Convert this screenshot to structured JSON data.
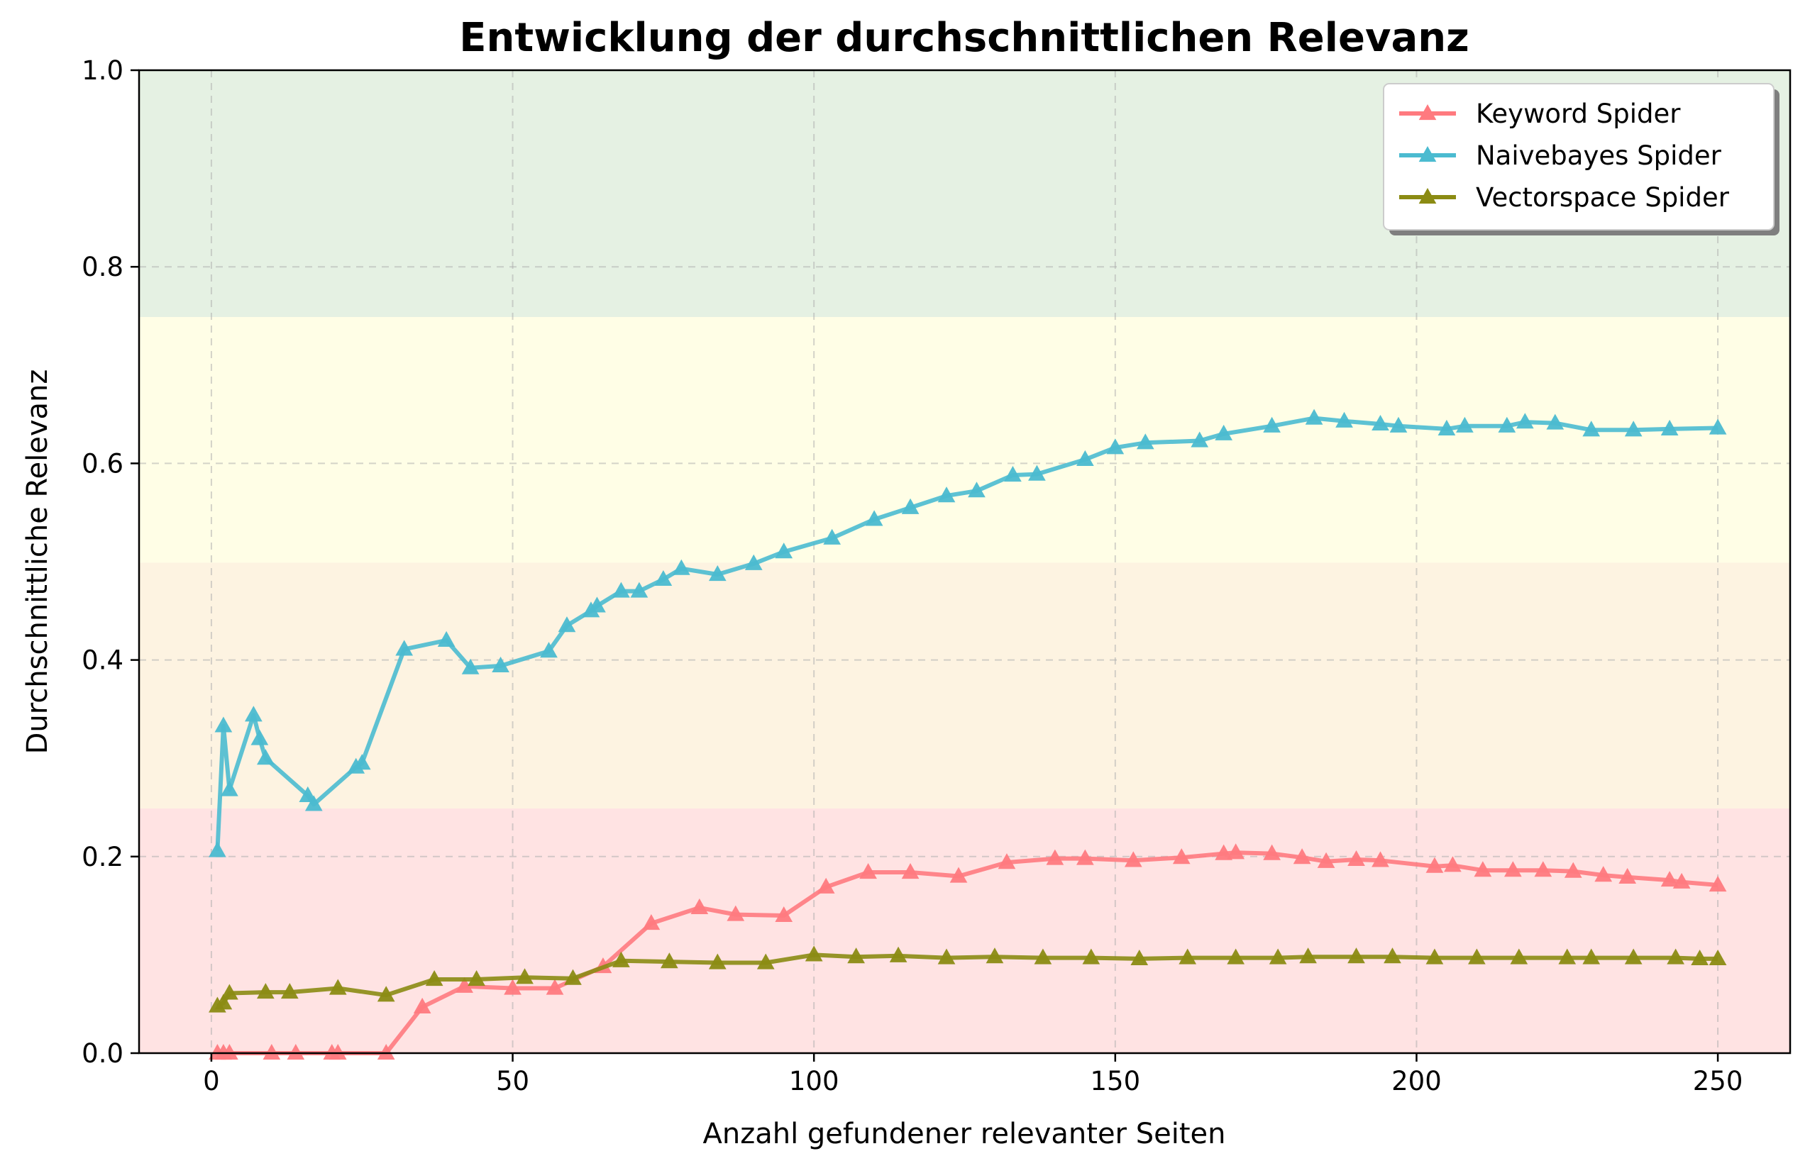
{
  "chart_data": {
    "type": "line",
    "title": "Entwicklung der durchschnittlichen Relevanz",
    "xlabel": "Anzahl gefundener relevanter Seiten",
    "ylabel": "Durchschnittliche Relevanz",
    "xlim": [
      -12,
      262
    ],
    "ylim": [
      0.0,
      1.0
    ],
    "xticks": [
      0,
      50,
      100,
      150,
      200,
      250
    ],
    "xtick_labels": [
      "0",
      "50",
      "100",
      "150",
      "200",
      "250"
    ],
    "yticks": [
      0.0,
      0.2,
      0.4,
      0.6,
      0.8,
      1.0
    ],
    "ytick_labels": [
      "0.0",
      "0.2",
      "0.4",
      "0.6",
      "0.8",
      "1.0"
    ],
    "grid": true,
    "legend_position": "top-right",
    "background_bands": [
      {
        "from": 0.0,
        "to": 0.25,
        "color": "#ffe3e3"
      },
      {
        "from": 0.25,
        "to": 0.5,
        "color": "#fdf3e1"
      },
      {
        "from": 0.5,
        "to": 0.75,
        "color": "#fffee6"
      },
      {
        "from": 0.75,
        "to": 1.0,
        "color": "#e5f1e3"
      }
    ],
    "series": [
      {
        "name": "Keyword Spider",
        "color": "#ff7a7f",
        "marker": "triangle",
        "x": [
          1,
          2,
          3,
          10,
          14,
          20,
          21,
          29,
          35,
          42,
          50,
          57,
          65,
          73,
          81,
          87,
          95,
          102,
          109,
          116,
          124,
          132,
          140,
          145,
          153,
          161,
          168,
          170,
          176,
          181,
          185,
          190,
          194,
          203,
          206,
          211,
          216,
          221,
          226,
          231,
          235,
          242,
          244,
          250
        ],
        "y": [
          0.0,
          0.0,
          0.0,
          0.0,
          0.0,
          0.0,
          0.0,
          0.0,
          0.047,
          0.068,
          0.066,
          0.066,
          0.088,
          0.132,
          0.148,
          0.141,
          0.14,
          0.169,
          0.184,
          0.184,
          0.18,
          0.194,
          0.198,
          0.198,
          0.196,
          0.199,
          0.203,
          0.204,
          0.203,
          0.199,
          0.195,
          0.197,
          0.196,
          0.19,
          0.191,
          0.186,
          0.186,
          0.186,
          0.185,
          0.181,
          0.179,
          0.176,
          0.174,
          0.171
        ]
      },
      {
        "name": "Naivebayes Spider",
        "color": "#4bbbd0",
        "marker": "triangle",
        "x": [
          1,
          2,
          3,
          7,
          8,
          9,
          16,
          17,
          24,
          25,
          32,
          39,
          43,
          48,
          56,
          59,
          63,
          64,
          68,
          71,
          75,
          78,
          84,
          90,
          95,
          103,
          110,
          116,
          122,
          127,
          133,
          137,
          145,
          150,
          155,
          164,
          168,
          176,
          183,
          188,
          194,
          197,
          205,
          208,
          215,
          218,
          223,
          229,
          236,
          242,
          250
        ],
        "y": [
          0.206,
          0.333,
          0.268,
          0.344,
          0.32,
          0.3,
          0.262,
          0.253,
          0.291,
          0.295,
          0.411,
          0.42,
          0.392,
          0.394,
          0.409,
          0.435,
          0.45,
          0.455,
          0.47,
          0.47,
          0.482,
          0.493,
          0.487,
          0.498,
          0.51,
          0.524,
          0.543,
          0.555,
          0.567,
          0.572,
          0.588,
          0.589,
          0.604,
          0.616,
          0.621,
          0.623,
          0.63,
          0.638,
          0.646,
          0.643,
          0.64,
          0.638,
          0.635,
          0.638,
          0.638,
          0.642,
          0.641,
          0.634,
          0.634,
          0.635,
          0.636
        ]
      },
      {
        "name": "Vectorspace Spider",
        "color": "#8b8b13",
        "marker": "triangle",
        "x": [
          1,
          2,
          3,
          9,
          13,
          21,
          29,
          37,
          44,
          52,
          60,
          68,
          76,
          84,
          92,
          100,
          107,
          114,
          122,
          130,
          138,
          146,
          154,
          162,
          170,
          177,
          182,
          190,
          196,
          203,
          210,
          217,
          225,
          229,
          236,
          243,
          247,
          250
        ],
        "y": [
          0.048,
          0.051,
          0.061,
          0.062,
          0.062,
          0.066,
          0.059,
          0.075,
          0.075,
          0.077,
          0.076,
          0.094,
          0.093,
          0.092,
          0.092,
          0.1,
          0.098,
          0.099,
          0.097,
          0.098,
          0.097,
          0.097,
          0.096,
          0.097,
          0.097,
          0.097,
          0.098,
          0.098,
          0.098,
          0.097,
          0.097,
          0.097,
          0.097,
          0.097,
          0.097,
          0.097,
          0.096,
          0.096
        ]
      }
    ]
  }
}
